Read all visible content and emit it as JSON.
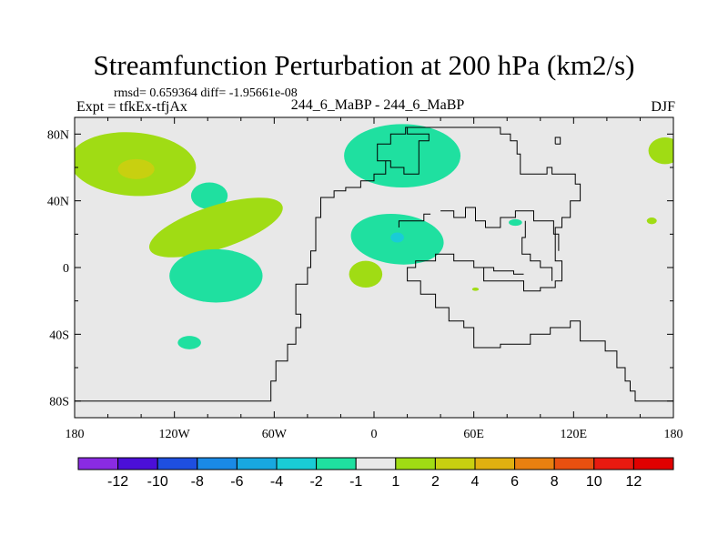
{
  "header": {
    "title": "Streamfunction Perturbation at 200 hPa (km2/s)",
    "stats": "rmsd= 0.659364 diff= -1.95661e-08",
    "experiment": "Expt = tfkEx-tfjAx",
    "comparison": "244_6_MaBP - 244_6_MaBP",
    "season": "DJF"
  },
  "chart_data": {
    "type": "heatmap",
    "title": "Streamfunction Perturbation at 200 hPa (km2/s)",
    "x_range": [
      -180,
      180
    ],
    "y_range": [
      -90,
      90
    ],
    "x_ticks": [
      {
        "value": -180,
        "label": "180"
      },
      {
        "value": -120,
        "label": "120W"
      },
      {
        "value": -60,
        "label": "60W"
      },
      {
        "value": 0,
        "label": "0"
      },
      {
        "value": 60,
        "label": "60E"
      },
      {
        "value": 120,
        "label": "120E"
      },
      {
        "value": 180,
        "label": "180"
      }
    ],
    "y_ticks": [
      {
        "value": 80,
        "label": "80N"
      },
      {
        "value": 40,
        "label": "40N"
      },
      {
        "value": 0,
        "label": "0"
      },
      {
        "value": -40,
        "label": "40S"
      },
      {
        "value": -80,
        "label": "80S"
      }
    ],
    "background_range": "-1 to 1",
    "colorbar": {
      "boundaries": [
        "-12",
        "-10",
        "-8",
        "-6",
        "-4",
        "-2",
        "-1",
        "1",
        "2",
        "4",
        "6",
        "8",
        "10",
        "12"
      ],
      "colors": [
        "#8a2be2",
        "#4b0fd8",
        "#1e4fe0",
        "#1a8ae6",
        "#18a8e0",
        "#19ccd6",
        "#1fe0a0",
        "#e8e8e8",
        "#a0dc14",
        "#c8d010",
        "#e0b010",
        "#e88010",
        "#e85010",
        "#e81a10",
        "#e00000"
      ]
    },
    "features": [
      {
        "level": "1 to 2",
        "color": "#a0dc14",
        "lon": -145,
        "lat": 62,
        "rlon": 38,
        "rlat": 19
      },
      {
        "level": "2 to 4",
        "color": "#c8d010",
        "lon": -143,
        "lat": 59,
        "rlon": 11,
        "rlat": 6
      },
      {
        "level": "-2 to -1",
        "color": "#1fe0a0",
        "lon": -99,
        "lat": 43,
        "rlon": 11,
        "rlat": 8
      },
      {
        "level": "1 to 2",
        "color": "#a0dc14",
        "lon": -95,
        "lat": 24,
        "rlon": 42,
        "rlat": 13
      },
      {
        "level": "-2 to -1",
        "color": "#1fe0a0",
        "lon": -95,
        "lat": -5,
        "rlon": 28,
        "rlat": 16
      },
      {
        "level": "-2 to -1",
        "color": "#1fe0a0",
        "lon": -111,
        "lat": -45,
        "rlon": 7,
        "rlat": 4
      },
      {
        "level": "-2 to -1",
        "color": "#1fe0a0",
        "lon": 17,
        "lat": 67,
        "rlon": 35,
        "rlat": 19
      },
      {
        "level": "-2 to -1",
        "color": "#1fe0a0",
        "lon": 14,
        "lat": 17,
        "rlon": 28,
        "rlat": 15
      },
      {
        "level": "-4 to -2",
        "color": "#19ccd6",
        "lon": 14,
        "lat": 18,
        "rlon": 4,
        "rlat": 3
      },
      {
        "level": "1 to 2",
        "color": "#a0dc14",
        "lon": -5,
        "lat": -4,
        "rlon": 10,
        "rlat": 8
      },
      {
        "level": "1 to 2",
        "color": "#a0dc14",
        "lon": 175,
        "lat": 70,
        "rlon": 10,
        "rlat": 8
      },
      {
        "level": "-2 to -1",
        "color": "#1fe0a0",
        "lon": 85,
        "lat": 27,
        "rlon": 4,
        "rlat": 2
      },
      {
        "level": "1 to 2",
        "color": "#a0dc14",
        "lon": 167,
        "lat": 28,
        "rlon": 3,
        "rlat": 2
      },
      {
        "level": "1 to 2",
        "color": "#a0dc14",
        "lon": 61,
        "lat": -13,
        "rlon": 2,
        "rlat": 1
      }
    ],
    "coastline_lonlat": [
      [
        [
          -180,
          -80
        ],
        [
          -62,
          -80
        ],
        [
          -62,
          -68
        ],
        [
          -59,
          -68
        ],
        [
          -59,
          -56
        ],
        [
          -52,
          -56
        ],
        [
          -52,
          -46
        ],
        [
          -47,
          -46
        ],
        [
          -47,
          -36
        ],
        [
          -44,
          -36
        ],
        [
          -44,
          -28
        ],
        [
          -47,
          -28
        ],
        [
          -47,
          -10
        ],
        [
          -40,
          -10
        ],
        [
          -40,
          0
        ],
        [
          -38,
          0
        ],
        [
          -38,
          10
        ],
        [
          -35,
          10
        ],
        [
          -35,
          30
        ],
        [
          -32,
          30
        ],
        [
          -32,
          42
        ],
        [
          -24,
          42
        ],
        [
          -24,
          46
        ],
        [
          -17,
          46
        ],
        [
          -17,
          48
        ],
        [
          -8,
          48
        ],
        [
          -8,
          52
        ],
        [
          0,
          52
        ],
        [
          0,
          56
        ],
        [
          7,
          56
        ],
        [
          7,
          64
        ],
        [
          2,
          64
        ],
        [
          2,
          74
        ],
        [
          10,
          74
        ],
        [
          10,
          80
        ],
        [
          19,
          80
        ],
        [
          19,
          84
        ],
        [
          76,
          84
        ],
        [
          76,
          80
        ],
        [
          82,
          80
        ],
        [
          82,
          76
        ],
        [
          86,
          76
        ],
        [
          86,
          68
        ],
        [
          88,
          68
        ],
        [
          88,
          56
        ],
        [
          104,
          56
        ],
        [
          104,
          60
        ],
        [
          107,
          60
        ],
        [
          107,
          56
        ],
        [
          121,
          56
        ],
        [
          121,
          50
        ],
        [
          124,
          50
        ],
        [
          124,
          40
        ],
        [
          118,
          40
        ],
        [
          118,
          30
        ],
        [
          113,
          30
        ],
        [
          113,
          24
        ],
        [
          109,
          24
        ],
        [
          109,
          4
        ],
        [
          113,
          4
        ],
        [
          113,
          -8
        ],
        [
          109,
          -8
        ],
        [
          109,
          -12
        ],
        [
          100,
          -12
        ],
        [
          100,
          -14
        ],
        [
          90,
          -14
        ],
        [
          90,
          -8
        ],
        [
          66,
          -8
        ],
        [
          66,
          0
        ],
        [
          60,
          0
        ],
        [
          60,
          4
        ],
        [
          48,
          4
        ],
        [
          48,
          8
        ],
        [
          37,
          8
        ],
        [
          37,
          4
        ],
        [
          25,
          4
        ],
        [
          25,
          0
        ],
        [
          20,
          0
        ],
        [
          20,
          -8
        ],
        [
          28,
          -8
        ],
        [
          28,
          -16
        ],
        [
          37,
          -16
        ],
        [
          37,
          -24
        ],
        [
          45,
          -24
        ],
        [
          45,
          -32
        ],
        [
          54,
          -32
        ],
        [
          54,
          -36
        ],
        [
          60,
          -36
        ],
        [
          60,
          -48
        ],
        [
          76,
          -48
        ],
        [
          76,
          -46
        ],
        [
          94,
          -46
        ],
        [
          94,
          -40
        ],
        [
          106,
          -40
        ],
        [
          106,
          -36
        ],
        [
          118,
          -36
        ],
        [
          118,
          -32
        ],
        [
          124,
          -32
        ],
        [
          124,
          -44
        ],
        [
          139,
          -44
        ],
        [
          139,
          -50
        ],
        [
          146,
          -50
        ],
        [
          146,
          -60
        ],
        [
          151,
          -60
        ],
        [
          151,
          -68
        ],
        [
          154,
          -68
        ],
        [
          154,
          -74
        ],
        [
          157,
          -74
        ],
        [
          157,
          -80
        ],
        [
          180,
          -80
        ]
      ],
      [
        [
          7,
          64
        ],
        [
          10,
          64
        ],
        [
          10,
          60
        ],
        [
          18,
          60
        ],
        [
          18,
          56
        ],
        [
          27,
          56
        ],
        [
          27,
          76
        ],
        [
          33,
          76
        ],
        [
          33,
          80
        ],
        [
          20,
          80
        ],
        [
          20,
          84
        ]
      ],
      [
        [
          40,
          34
        ],
        [
          48,
          34
        ],
        [
          48,
          30
        ],
        [
          55,
          30
        ],
        [
          55,
          36
        ],
        [
          61,
          36
        ],
        [
          61,
          28
        ],
        [
          67,
          28
        ],
        [
          67,
          24
        ],
        [
          76,
          24
        ],
        [
          76,
          30
        ],
        [
          85,
          30
        ],
        [
          85,
          34
        ],
        [
          96,
          34
        ],
        [
          96,
          28
        ],
        [
          108,
          28
        ],
        [
          108,
          20
        ],
        [
          111,
          20
        ],
        [
          111,
          10
        ]
      ],
      [
        [
          64,
          0
        ],
        [
          72,
          0
        ],
        [
          72,
          -2
        ],
        [
          84,
          -2
        ],
        [
          84,
          -4
        ],
        [
          90,
          -4
        ]
      ],
      [
        [
          91,
          28
        ],
        [
          91,
          18
        ],
        [
          89,
          18
        ],
        [
          89,
          8
        ],
        [
          94,
          8
        ],
        [
          94,
          4
        ],
        [
          100,
          4
        ],
        [
          100,
          0
        ],
        [
          107,
          0
        ],
        [
          107,
          -8
        ]
      ],
      [
        [
          15,
          24
        ],
        [
          15,
          28
        ],
        [
          30,
          28
        ],
        [
          30,
          32
        ],
        [
          34,
          32
        ]
      ],
      [
        [
          109,
          74
        ],
        [
          109,
          78
        ],
        [
          112,
          78
        ],
        [
          112,
          74
        ],
        [
          109,
          74
        ]
      ]
    ]
  }
}
